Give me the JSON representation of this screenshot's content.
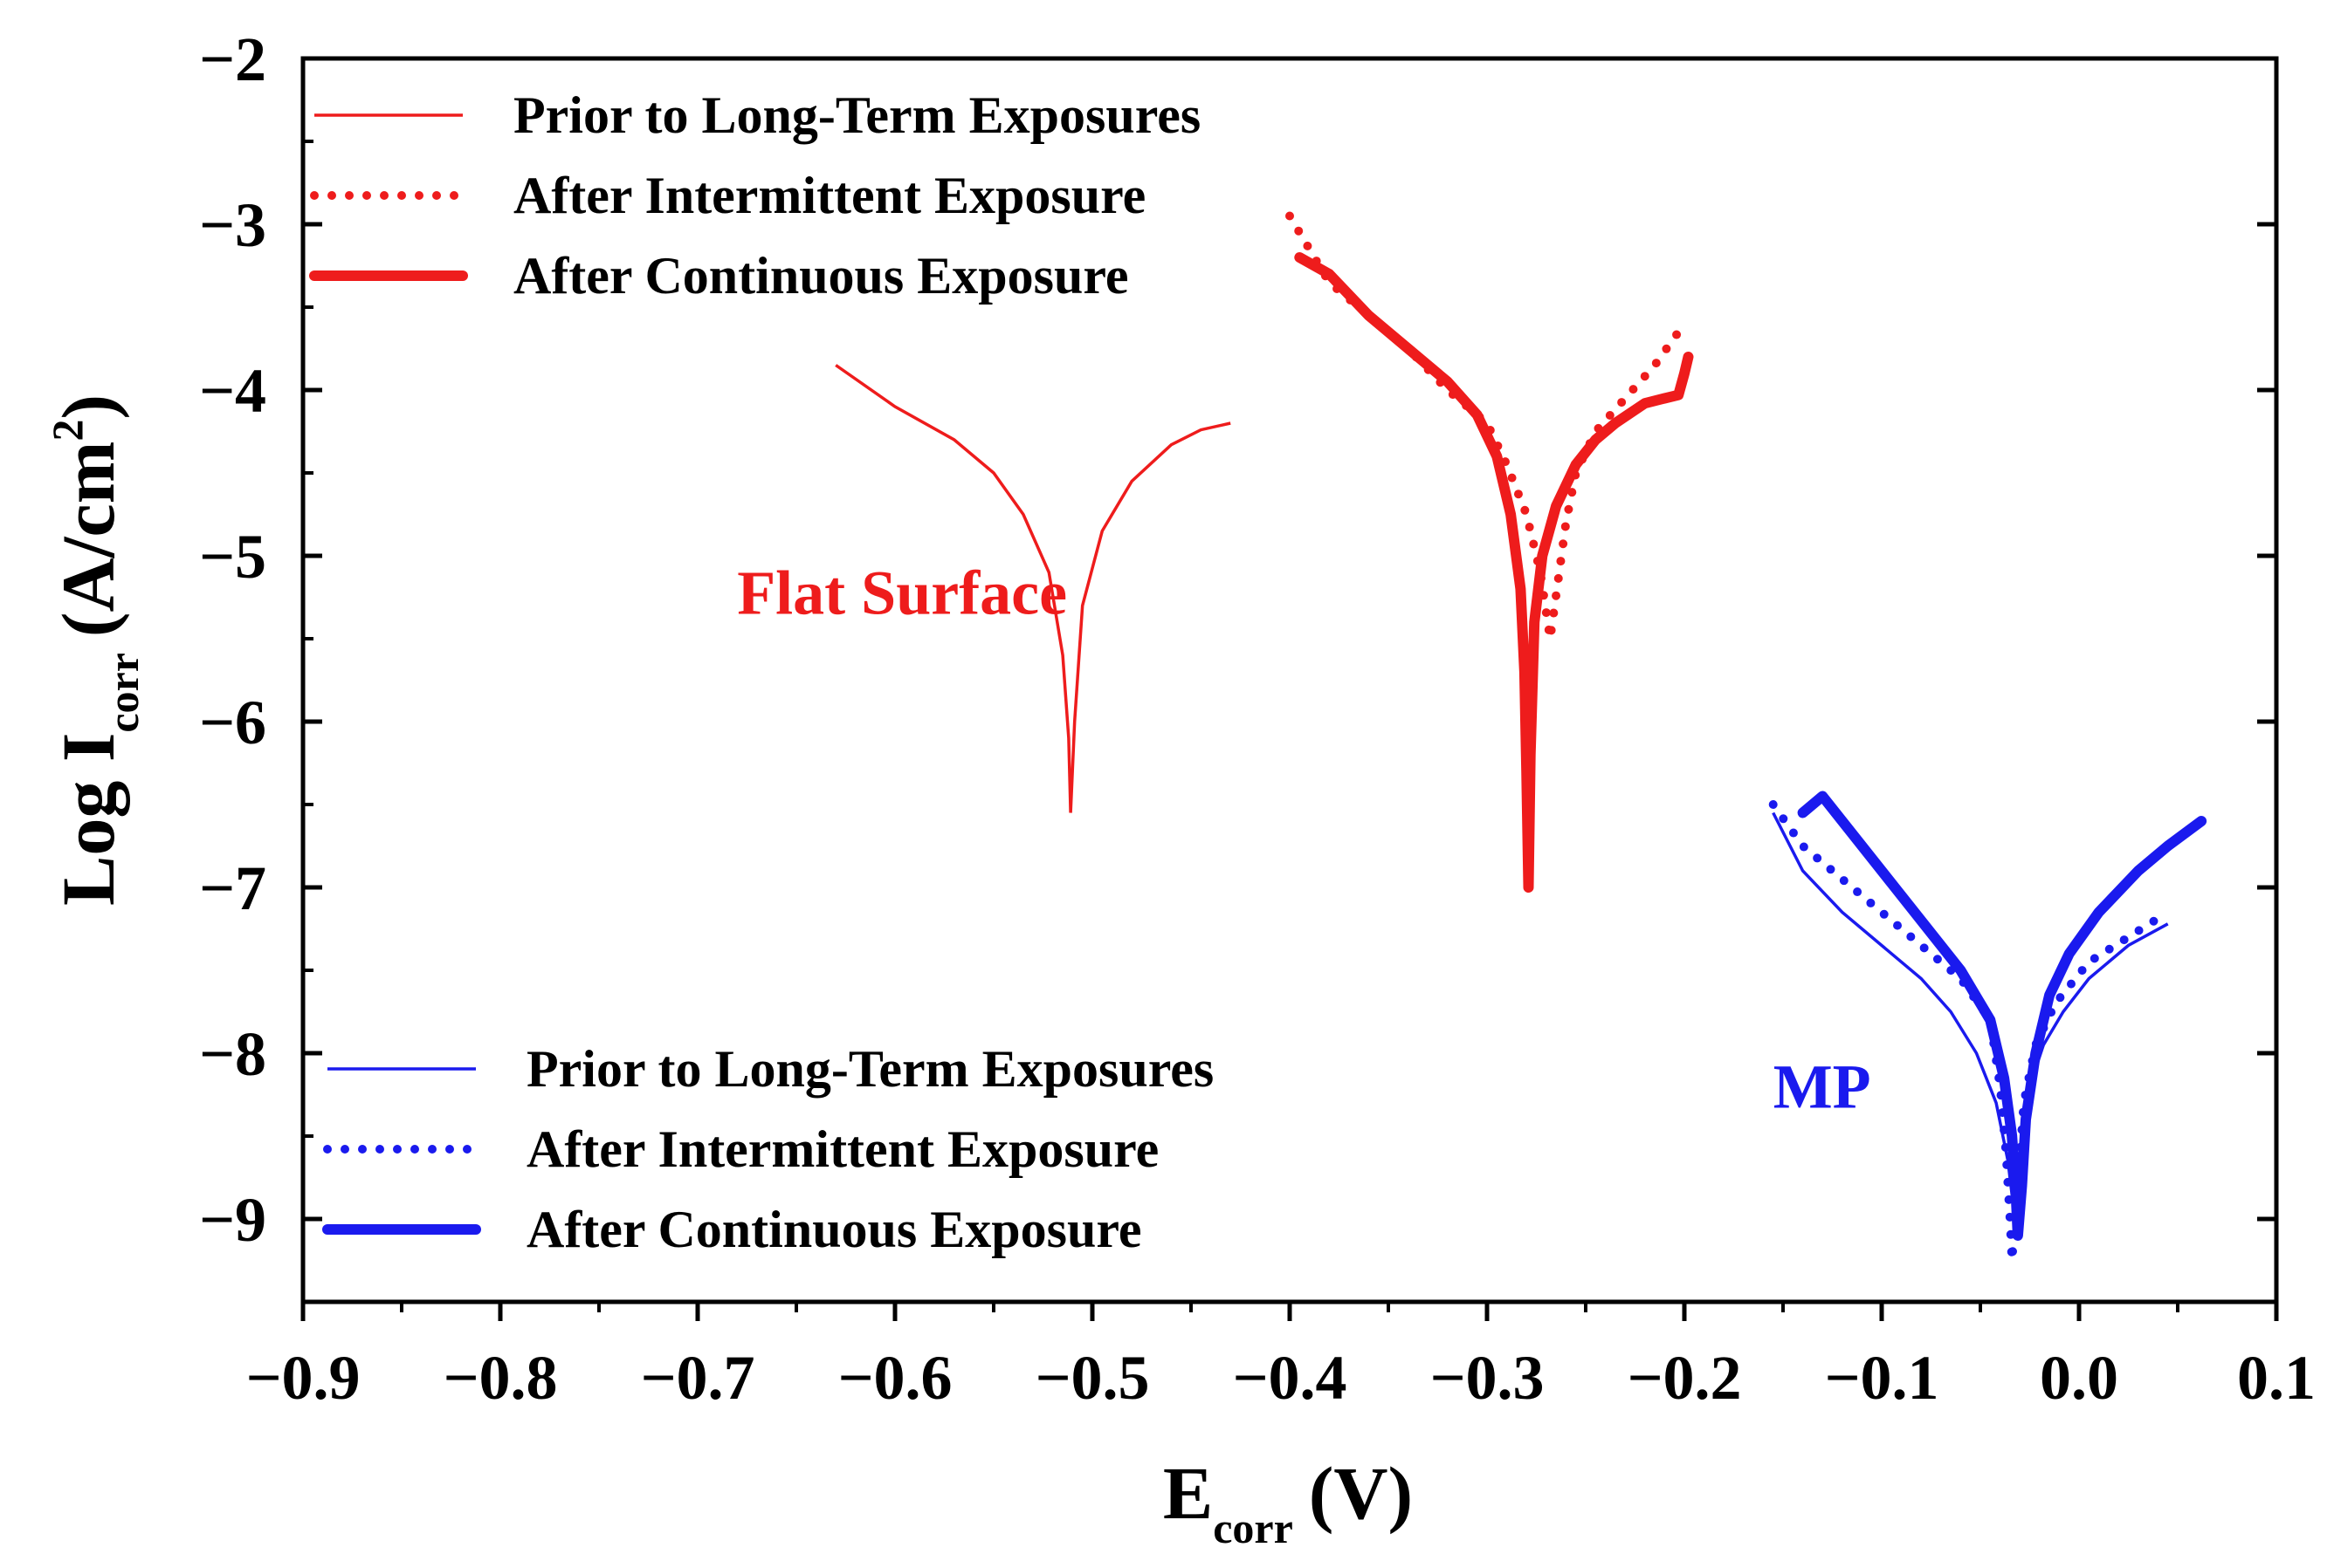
{
  "chart_data": {
    "type": "line",
    "title": "",
    "xlabel": {
      "main": "E",
      "sub": "corr",
      "unit": "(V)"
    },
    "ylabel": {
      "main": "Log I",
      "sub": "corr",
      "unit_open": "(A/cm",
      "unit_sup": "2",
      "unit_close": ")"
    },
    "xlim": [
      -0.9,
      0.1
    ],
    "ylim": [
      -9.5,
      -2
    ],
    "x_ticks": [
      {
        "value": -0.9,
        "label": "−0.9"
      },
      {
        "value": -0.8,
        "label": "−0.8"
      },
      {
        "value": -0.7,
        "label": "−0.7"
      },
      {
        "value": -0.6,
        "label": "−0.6"
      },
      {
        "value": -0.5,
        "label": "−0.5"
      },
      {
        "value": -0.4,
        "label": "−0.4"
      },
      {
        "value": -0.3,
        "label": "−0.3"
      },
      {
        "value": -0.2,
        "label": "−0.2"
      },
      {
        "value": -0.1,
        "label": "−0.1"
      },
      {
        "value": 0.0,
        "label": "0.0"
      },
      {
        "value": 0.1,
        "label": "0.1"
      }
    ],
    "y_ticks": [
      {
        "value": -2,
        "label": "−2"
      },
      {
        "value": -3,
        "label": "−3"
      },
      {
        "value": -4,
        "label": "−4"
      },
      {
        "value": -5,
        "label": "−5"
      },
      {
        "value": -6,
        "label": "−6"
      },
      {
        "value": -7,
        "label": "−7"
      },
      {
        "value": -8,
        "label": "−8"
      },
      {
        "value": -9,
        "label": "−9"
      }
    ],
    "grid": false,
    "annotations": [
      {
        "text": "Flat Surface",
        "x": -0.68,
        "y": -5.35,
        "color": "#ee1c1c"
      },
      {
        "text": "MP",
        "x": -0.155,
        "y": -8.33,
        "color": "#1a1aee"
      }
    ],
    "legends": [
      {
        "placement": "top-left",
        "entries": [
          {
            "label": "Prior to Long-Term Exposures",
            "color": "#ee1c1c",
            "style": "thin"
          },
          {
            "label": "After Intermittent Exposure",
            "color": "#ee1c1c",
            "style": "dotted"
          },
          {
            "label": "After Continuous Exposure",
            "color": "#ee1c1c",
            "style": "thick"
          }
        ]
      },
      {
        "placement": "bottom-left",
        "entries": [
          {
            "label": "Prior to Long-Term Exposures",
            "color": "#1a1aee",
            "style": "thin"
          },
          {
            "label": "After Intermittent Exposure",
            "color": "#1a1aee",
            "style": "dotted"
          },
          {
            "label": "After Continuous Exposure",
            "color": "#1a1aee",
            "style": "thick"
          }
        ]
      }
    ],
    "series": [
      {
        "name": "Flat Surface - Prior to Long-Term Exposures",
        "color": "#ee1c1c",
        "style": "thin",
        "points": [
          [
            -0.63,
            -3.85
          ],
          [
            -0.6,
            -4.1
          ],
          [
            -0.57,
            -4.3
          ],
          [
            -0.55,
            -4.5
          ],
          [
            -0.535,
            -4.75
          ],
          [
            -0.522,
            -5.1
          ],
          [
            -0.515,
            -5.6
          ],
          [
            -0.512,
            -6.1
          ],
          [
            -0.511,
            -6.55
          ],
          [
            -0.509,
            -6.0
          ],
          [
            -0.505,
            -5.3
          ],
          [
            -0.495,
            -4.85
          ],
          [
            -0.48,
            -4.55
          ],
          [
            -0.46,
            -4.33
          ],
          [
            -0.445,
            -4.24
          ],
          [
            -0.43,
            -4.2
          ]
        ]
      },
      {
        "name": "Flat Surface - After Intermittent Exposure",
        "color": "#ee1c1c",
        "style": "dotted",
        "points": [
          [
            -0.4,
            -2.95
          ],
          [
            -0.38,
            -3.35
          ],
          [
            -0.36,
            -3.55
          ],
          [
            -0.34,
            -3.75
          ],
          [
            -0.32,
            -4.0
          ],
          [
            -0.3,
            -4.2
          ],
          [
            -0.29,
            -4.45
          ],
          [
            -0.28,
            -4.75
          ],
          [
            -0.273,
            -5.1
          ],
          [
            -0.268,
            -5.5
          ],
          [
            -0.264,
            -5.15
          ],
          [
            -0.26,
            -4.8
          ],
          [
            -0.255,
            -4.5
          ],
          [
            -0.245,
            -4.25
          ],
          [
            -0.23,
            -4.05
          ],
          [
            -0.215,
            -3.85
          ],
          [
            -0.2,
            -3.6
          ]
        ]
      },
      {
        "name": "Flat Surface - After Continuous Exposure",
        "color": "#ee1c1c",
        "style": "thick",
        "points": [
          [
            -0.395,
            -3.2
          ],
          [
            -0.38,
            -3.3
          ],
          [
            -0.36,
            -3.55
          ],
          [
            -0.34,
            -3.75
          ],
          [
            -0.32,
            -3.95
          ],
          [
            -0.305,
            -4.15
          ],
          [
            -0.295,
            -4.4
          ],
          [
            -0.288,
            -4.75
          ],
          [
            -0.283,
            -5.2
          ],
          [
            -0.281,
            -5.7
          ],
          [
            -0.28,
            -6.3
          ],
          [
            -0.279,
            -7.0
          ],
          [
            -0.278,
            -6.2
          ],
          [
            -0.276,
            -5.4
          ],
          [
            -0.272,
            -5.0
          ],
          [
            -0.265,
            -4.7
          ],
          [
            -0.255,
            -4.45
          ],
          [
            -0.245,
            -4.3
          ],
          [
            -0.235,
            -4.2
          ],
          [
            -0.22,
            -4.08
          ],
          [
            -0.21,
            -4.05
          ],
          [
            -0.203,
            -4.03
          ],
          [
            -0.2,
            -3.9
          ],
          [
            -0.198,
            -3.8
          ]
        ]
      },
      {
        "name": "MP - Prior to Long-Term Exposures",
        "color": "#1a1aee",
        "style": "thin",
        "points": [
          [
            -0.155,
            -6.55
          ],
          [
            -0.14,
            -6.9
          ],
          [
            -0.12,
            -7.15
          ],
          [
            -0.1,
            -7.35
          ],
          [
            -0.08,
            -7.55
          ],
          [
            -0.065,
            -7.75
          ],
          [
            -0.052,
            -8.0
          ],
          [
            -0.042,
            -8.3
          ],
          [
            -0.036,
            -8.65
          ],
          [
            -0.033,
            -8.95
          ],
          [
            -0.03,
            -8.6
          ],
          [
            -0.025,
            -8.2
          ],
          [
            -0.018,
            -7.95
          ],
          [
            -0.008,
            -7.75
          ],
          [
            0.005,
            -7.55
          ],
          [
            0.025,
            -7.35
          ],
          [
            0.045,
            -7.22
          ]
        ]
      },
      {
        "name": "MP - After Intermittent Exposure",
        "color": "#1a1aee",
        "style": "dotted",
        "points": [
          [
            -0.155,
            -6.5
          ],
          [
            -0.14,
            -6.75
          ],
          [
            -0.12,
            -6.95
          ],
          [
            -0.1,
            -7.15
          ],
          [
            -0.08,
            -7.35
          ],
          [
            -0.06,
            -7.55
          ],
          [
            -0.045,
            -7.8
          ],
          [
            -0.04,
            -8.2
          ],
          [
            -0.037,
            -8.6
          ],
          [
            -0.035,
            -9.0
          ],
          [
            -0.034,
            -9.25
          ],
          [
            -0.031,
            -8.8
          ],
          [
            -0.028,
            -8.3
          ],
          [
            -0.022,
            -7.95
          ],
          [
            -0.012,
            -7.7
          ],
          [
            0.005,
            -7.45
          ],
          [
            0.025,
            -7.3
          ],
          [
            0.045,
            -7.15
          ]
        ]
      },
      {
        "name": "MP - After Continuous Exposure",
        "color": "#1a1aee",
        "style": "thick",
        "points": [
          [
            -0.14,
            -6.55
          ],
          [
            -0.13,
            -6.45
          ],
          [
            -0.12,
            -6.6
          ],
          [
            -0.1,
            -6.9
          ],
          [
            -0.08,
            -7.2
          ],
          [
            -0.06,
            -7.5
          ],
          [
            -0.045,
            -7.8
          ],
          [
            -0.038,
            -8.15
          ],
          [
            -0.034,
            -8.5
          ],
          [
            -0.032,
            -8.85
          ],
          [
            -0.031,
            -9.1
          ],
          [
            -0.029,
            -8.8
          ],
          [
            -0.027,
            -8.4
          ],
          [
            -0.022,
            -8.0
          ],
          [
            -0.015,
            -7.65
          ],
          [
            -0.005,
            -7.4
          ],
          [
            0.01,
            -7.15
          ],
          [
            0.03,
            -6.9
          ],
          [
            0.045,
            -6.75
          ],
          [
            0.062,
            -6.6
          ]
        ]
      }
    ]
  }
}
